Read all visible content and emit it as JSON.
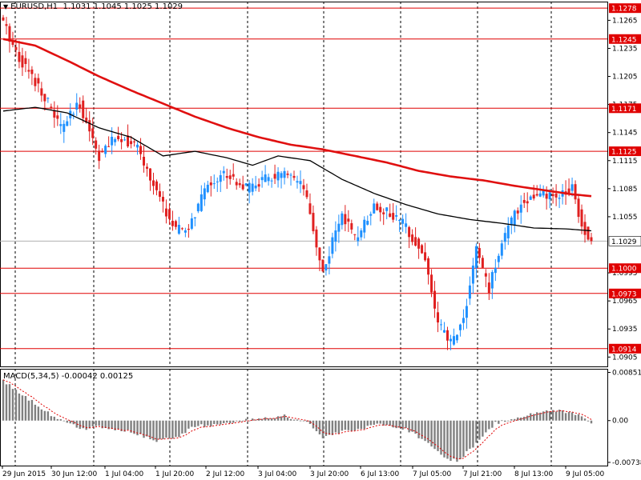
{
  "header": {
    "symbol": "EURUSD,H1",
    "ohlc": "1.1031 1.1045 1.1025 1.1029"
  },
  "macd_header": {
    "name": "MACD(5,34,5)",
    "values": "-0.00042 0.00125"
  },
  "colors": {
    "background": "#ffffff",
    "bull": "#1e90ff",
    "bear": "#e02020",
    "ma_fast": "#000000",
    "ma_slow": "#e01010",
    "hline": "#e00000",
    "macd_hist": "#808080",
    "macd_signal": "#e00000"
  },
  "chart_data": [
    {
      "type": "candlestick",
      "title": "EURUSD,H1",
      "ylim": [
        1.0895,
        1.1285
      ],
      "price_ticks": [
        "1.1265",
        "1.1235",
        "1.1205",
        "1.1175",
        "1.1145",
        "1.1115",
        "1.1085",
        "1.1055",
        "1.0995",
        "1.0965",
        "1.0935",
        "1.0905"
      ],
      "horizontal_levels": [
        {
          "value": 1.1278,
          "label": "1.1278"
        },
        {
          "value": 1.1245,
          "label": "1.1245"
        },
        {
          "value": 1.1171,
          "label": "1.1171"
        },
        {
          "value": 1.1125,
          "label": "1.1125"
        },
        {
          "value": 1.1,
          "label": "1.1000"
        },
        {
          "value": 1.0973,
          "label": "1.0973"
        },
        {
          "value": 1.0914,
          "label": "1.0914"
        }
      ],
      "current_price": {
        "value": 1.1029,
        "label": "1.1029"
      },
      "x_labels": [
        "29 Jun 2015",
        "30 Jun 12:00",
        "1 Jul 04:00",
        "1 Jul 20:00",
        "2 Jul 12:00",
        "3 Jul 04:00",
        "3 Jul 20:00",
        "6 Jul 13:00",
        "7 Jul 05:00",
        "7 Jul 21:00",
        "8 Jul 13:00",
        "9 Jul 05:00"
      ],
      "close_path": [
        {
          "i": 0,
          "v": 1.1262
        },
        {
          "i": 5,
          "v": 1.1225
        },
        {
          "i": 12,
          "v": 1.119
        },
        {
          "i": 18,
          "v": 1.115
        },
        {
          "i": 24,
          "v": 1.1175
        },
        {
          "i": 30,
          "v": 1.112
        },
        {
          "i": 36,
          "v": 1.1142
        },
        {
          "i": 42,
          "v": 1.1128
        },
        {
          "i": 48,
          "v": 1.108
        },
        {
          "i": 54,
          "v": 1.104
        },
        {
          "i": 58,
          "v": 1.1042
        },
        {
          "i": 64,
          "v": 1.109
        },
        {
          "i": 70,
          "v": 1.1102
        },
        {
          "i": 76,
          "v": 1.1085
        },
        {
          "i": 82,
          "v": 1.1095
        },
        {
          "i": 88,
          "v": 1.11
        },
        {
          "i": 94,
          "v": 1.1085
        },
        {
          "i": 100,
          "v": 1.0995
        },
        {
          "i": 106,
          "v": 1.106
        },
        {
          "i": 110,
          "v": 1.103
        },
        {
          "i": 116,
          "v": 1.1068
        },
        {
          "i": 120,
          "v": 1.106
        },
        {
          "i": 126,
          "v": 1.1045
        },
        {
          "i": 132,
          "v": 1.101
        },
        {
          "i": 136,
          "v": 1.094
        },
        {
          "i": 140,
          "v": 1.092
        },
        {
          "i": 144,
          "v": 1.0945
        },
        {
          "i": 148,
          "v": 1.102
        },
        {
          "i": 152,
          "v": 1.0978
        },
        {
          "i": 156,
          "v": 1.103
        },
        {
          "i": 162,
          "v": 1.107
        },
        {
          "i": 168,
          "v": 1.1078
        },
        {
          "i": 174,
          "v": 1.1075
        },
        {
          "i": 178,
          "v": 1.109
        },
        {
          "i": 181,
          "v": 1.1045
        },
        {
          "i": 184,
          "v": 1.1029
        }
      ],
      "ma_fast": [
        {
          "i": 0,
          "v": 1.1168
        },
        {
          "i": 10,
          "v": 1.1172
        },
        {
          "i": 20,
          "v": 1.1166
        },
        {
          "i": 30,
          "v": 1.115
        },
        {
          "i": 40,
          "v": 1.114
        },
        {
          "i": 50,
          "v": 1.112
        },
        {
          "i": 60,
          "v": 1.1125
        },
        {
          "i": 70,
          "v": 1.1118
        },
        {
          "i": 78,
          "v": 1.111
        },
        {
          "i": 86,
          "v": 1.112
        },
        {
          "i": 96,
          "v": 1.1115
        },
        {
          "i": 106,
          "v": 1.1095
        },
        {
          "i": 116,
          "v": 1.108
        },
        {
          "i": 126,
          "v": 1.1068
        },
        {
          "i": 136,
          "v": 1.1058
        },
        {
          "i": 146,
          "v": 1.1052
        },
        {
          "i": 156,
          "v": 1.1048
        },
        {
          "i": 166,
          "v": 1.1043
        },
        {
          "i": 176,
          "v": 1.1042
        },
        {
          "i": 184,
          "v": 1.104
        }
      ],
      "ma_slow": [
        {
          "i": 0,
          "v": 1.1245
        },
        {
          "i": 10,
          "v": 1.1238
        },
        {
          "i": 20,
          "v": 1.1222
        },
        {
          "i": 30,
          "v": 1.1205
        },
        {
          "i": 40,
          "v": 1.119
        },
        {
          "i": 50,
          "v": 1.1176
        },
        {
          "i": 60,
          "v": 1.1162
        },
        {
          "i": 70,
          "v": 1.115
        },
        {
          "i": 80,
          "v": 1.114
        },
        {
          "i": 90,
          "v": 1.1132
        },
        {
          "i": 100,
          "v": 1.1127
        },
        {
          "i": 110,
          "v": 1.112
        },
        {
          "i": 120,
          "v": 1.1113
        },
        {
          "i": 130,
          "v": 1.1104
        },
        {
          "i": 140,
          "v": 1.1098
        },
        {
          "i": 150,
          "v": 1.1094
        },
        {
          "i": 160,
          "v": 1.1088
        },
        {
          "i": 170,
          "v": 1.1083
        },
        {
          "i": 178,
          "v": 1.1079
        },
        {
          "i": 184,
          "v": 1.1077
        }
      ]
    },
    {
      "type": "bar",
      "title": "MACD(5,34,5)",
      "ylim": [
        -0.00795,
        0.00915
      ],
      "y_ticks": [
        "0.00851",
        "0.00",
        "-0.00738"
      ],
      "hist_path": [
        {
          "i": 0,
          "v": 0.007
        },
        {
          "i": 5,
          "v": 0.005
        },
        {
          "i": 10,
          "v": 0.003
        },
        {
          "i": 15,
          "v": 0.001
        },
        {
          "i": 20,
          "v": -0.0005
        },
        {
          "i": 25,
          "v": -0.0015
        },
        {
          "i": 30,
          "v": -0.001
        },
        {
          "i": 40,
          "v": -0.002
        },
        {
          "i": 48,
          "v": -0.0035
        },
        {
          "i": 54,
          "v": -0.003
        },
        {
          "i": 60,
          "v": -0.001
        },
        {
          "i": 70,
          "v": -0.0005
        },
        {
          "i": 80,
          "v": 0.0004
        },
        {
          "i": 88,
          "v": 0.0008
        },
        {
          "i": 95,
          "v": -0.0002
        },
        {
          "i": 100,
          "v": -0.003
        },
        {
          "i": 106,
          "v": -0.002
        },
        {
          "i": 112,
          "v": -0.0015
        },
        {
          "i": 118,
          "v": -0.0005
        },
        {
          "i": 126,
          "v": -0.0015
        },
        {
          "i": 132,
          "v": -0.0035
        },
        {
          "i": 138,
          "v": -0.0065
        },
        {
          "i": 142,
          "v": -0.0072
        },
        {
          "i": 148,
          "v": -0.004
        },
        {
          "i": 154,
          "v": -0.0005
        },
        {
          "i": 160,
          "v": 0.0005
        },
        {
          "i": 166,
          "v": 0.0012
        },
        {
          "i": 172,
          "v": 0.0018
        },
        {
          "i": 178,
          "v": 0.0015
        },
        {
          "i": 182,
          "v": 0.0005
        },
        {
          "i": 184,
          "v": -0.00042
        }
      ]
    }
  ]
}
